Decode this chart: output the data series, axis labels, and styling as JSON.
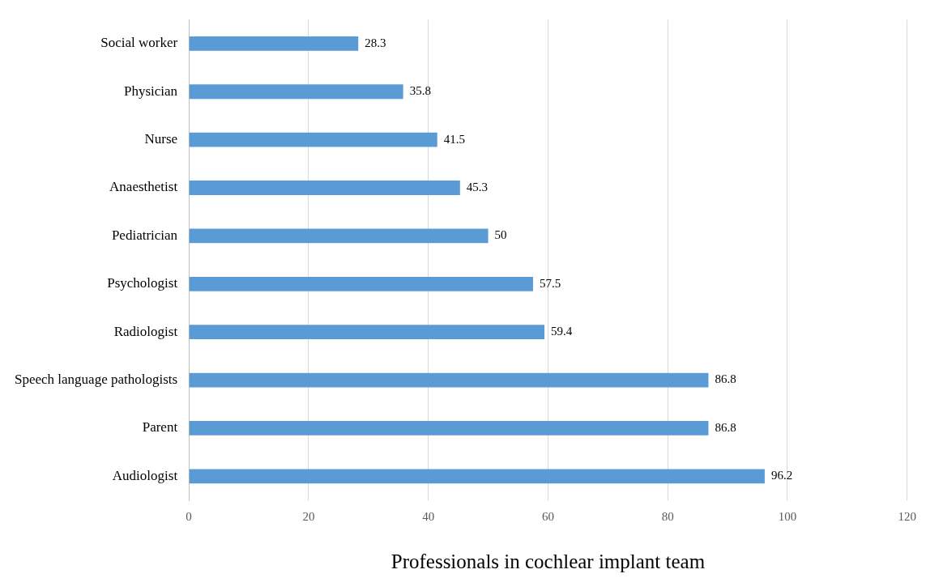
{
  "chart_data": {
    "type": "bar",
    "orientation": "horizontal",
    "xlabel": "Professionals in cochlear implant team",
    "categories": [
      "Social worker",
      "Physician",
      "Nurse",
      "Anaesthetist",
      "Pediatrician",
      "Psychologist",
      "Radiologist",
      "Speech language pathologists",
      "Parent",
      "Audiologist"
    ],
    "values": [
      28.3,
      35.8,
      41.5,
      45.3,
      50,
      57.5,
      59.4,
      86.8,
      86.8,
      96.2
    ],
    "color": "#5b9bd5",
    "xlim": [
      0,
      120
    ],
    "xticks": [
      0,
      20,
      40,
      60,
      80,
      100,
      120
    ],
    "grid": "x",
    "data_labels": true
  }
}
